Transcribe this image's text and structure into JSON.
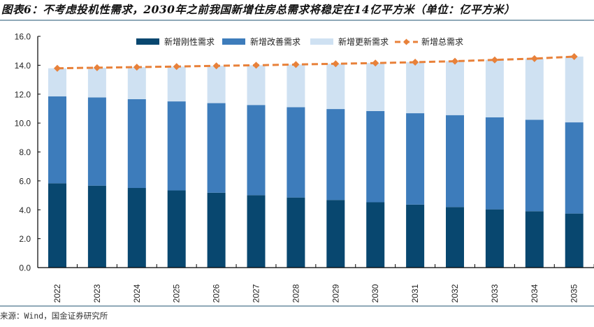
{
  "header": {
    "title": "图表6：不考虑投机性需求，2030年之前我国新增住房总需求将稳定在14亿平方米（单位：亿平方米）"
  },
  "footer": {
    "source": "来源：Wind，国金证券研究所"
  },
  "colors": {
    "rigid": "#08476f",
    "improve": "#3d7cbb",
    "renew": "#cfe1f2",
    "total": "#e8813a",
    "axis": "#000000"
  },
  "chart_data": {
    "type": "bar",
    "stacked": true,
    "title": "不考虑投机性需求，2030年之前我国新增住房总需求将稳定在14亿平方米（单位：亿平方米）",
    "xlabel": "",
    "ylabel": "",
    "ylim": [
      0,
      16
    ],
    "yticks": [
      "0.0",
      "2.0",
      "4.0",
      "6.0",
      "8.0",
      "10.0",
      "12.0",
      "14.0",
      "16.0"
    ],
    "grid": false,
    "legend_position": "top",
    "categories": [
      "2022",
      "2023",
      "2024",
      "2025",
      "2026",
      "2027",
      "2028",
      "2029",
      "2030",
      "2031",
      "2032",
      "2033",
      "2034",
      "2035"
    ],
    "series": [
      {
        "name": "新增刚性需求",
        "type": "bar",
        "values": [
          5.83,
          5.67,
          5.51,
          5.34,
          5.18,
          5.01,
          4.85,
          4.68,
          4.52,
          4.36,
          4.19,
          4.03,
          3.9,
          3.74
        ]
      },
      {
        "name": "新增改善需求",
        "type": "bar",
        "values": [
          6.02,
          6.1,
          6.14,
          6.16,
          6.2,
          6.24,
          6.25,
          6.29,
          6.31,
          6.32,
          6.36,
          6.37,
          6.33,
          6.31
        ]
      },
      {
        "name": "新增更新需求",
        "type": "bar",
        "values": [
          1.94,
          2.06,
          2.22,
          2.41,
          2.58,
          2.75,
          2.95,
          3.13,
          3.32,
          3.53,
          3.73,
          3.97,
          4.23,
          4.55
        ]
      },
      {
        "name": "新增总需求",
        "type": "line",
        "values": [
          13.79,
          13.83,
          13.87,
          13.91,
          13.96,
          14.0,
          14.05,
          14.1,
          14.15,
          14.21,
          14.28,
          14.37,
          14.46,
          14.6
        ]
      }
    ]
  }
}
